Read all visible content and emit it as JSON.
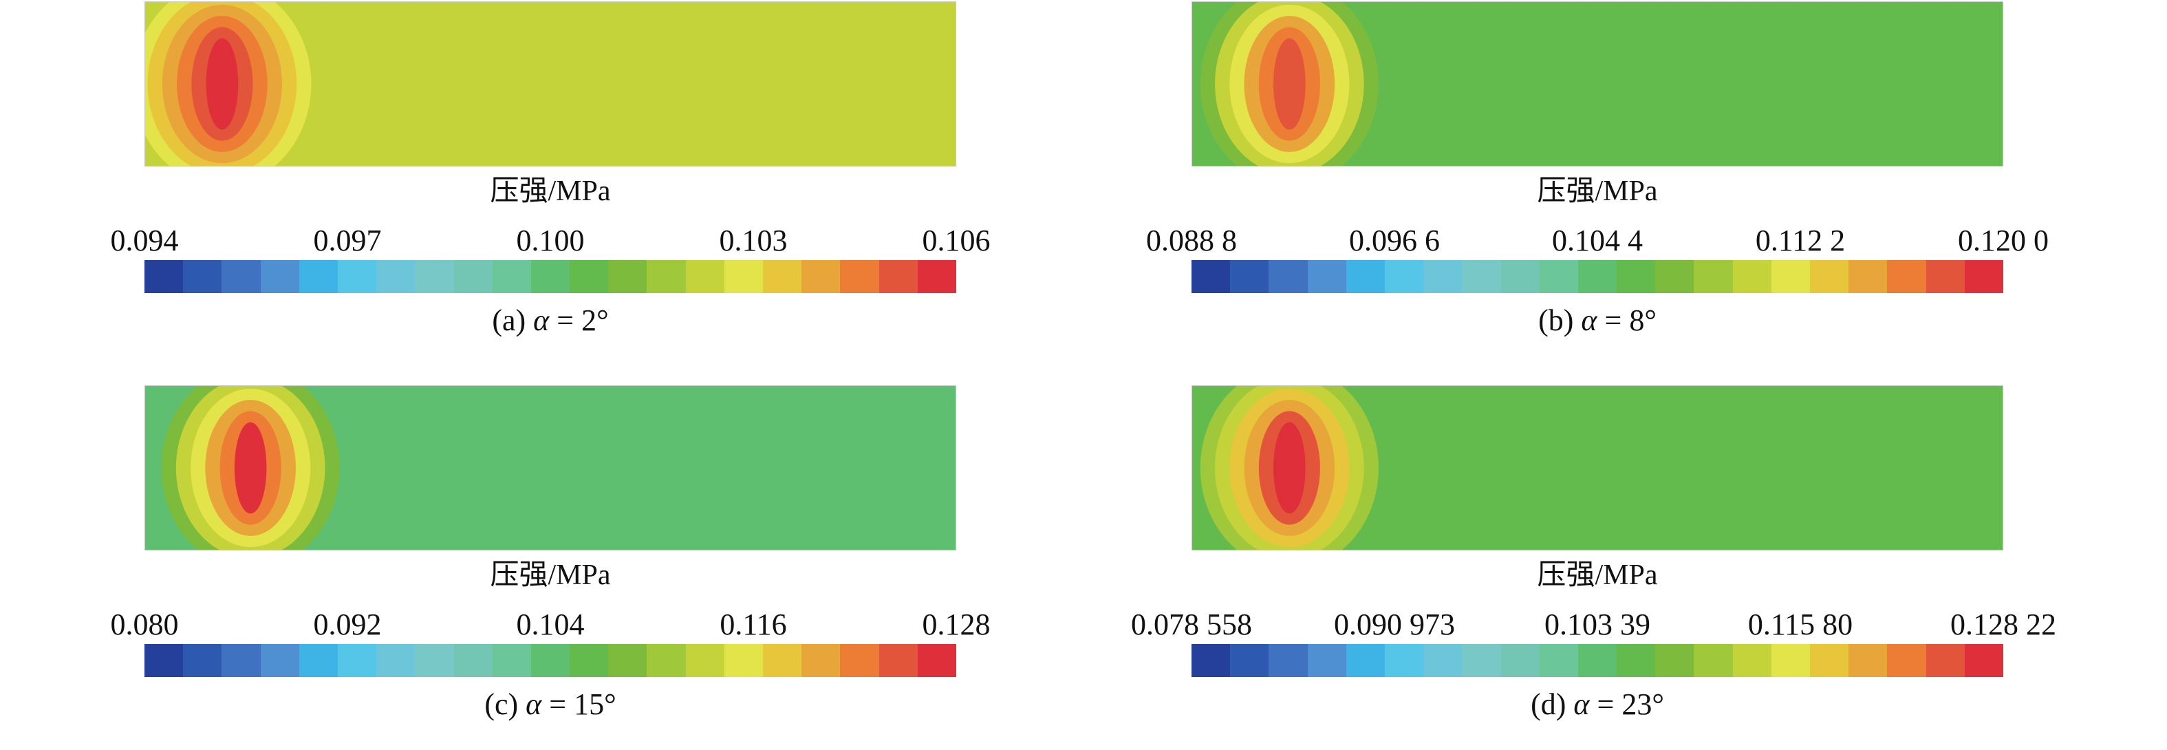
{
  "colorbar_colors": [
    "#25409a",
    "#2e59b0",
    "#3f73c2",
    "#4f90d2",
    "#3eb3e6",
    "#55c6e8",
    "#6cc5d8",
    "#78c8c7",
    "#73c6b4",
    "#6bc69a",
    "#5fbf70",
    "#62bb4c",
    "#7dbb3c",
    "#a0c83b",
    "#c3d339",
    "#e3e34a",
    "#e8c63b",
    "#e8a53a",
    "#ed7c34",
    "#e2553b",
    "#df2f3a"
  ],
  "chart_data": [
    {
      "type": "heatmap",
      "colorbar_title": "压强/MPa",
      "ticks": [
        "0.094",
        "0.097",
        "0.100",
        "0.103",
        "0.106"
      ],
      "vmin": 0.094,
      "vmax": 0.106,
      "caption_prefix": "(a) ",
      "caption_alpha": "α",
      "caption_suffix": " = 2°",
      "alpha_deg": 2,
      "background_value": 0.1022,
      "hotspot_peak_value": 0.1056,
      "hotspot_center_fraction": 0.095
    },
    {
      "type": "heatmap",
      "colorbar_title": "压强/MPa",
      "ticks": [
        "0.088 8",
        "0.096 6",
        "0.104 4",
        "0.112 2",
        "0.120 0"
      ],
      "vmin": 0.0888,
      "vmax": 0.12,
      "caption_prefix": "(b) ",
      "caption_alpha": "α",
      "caption_suffix": " = 8°",
      "alpha_deg": 8,
      "background_value": 0.1055,
      "hotspot_peak_value": 0.1185,
      "hotspot_center_fraction": 0.12
    },
    {
      "type": "heatmap",
      "colorbar_title": "压强/MPa",
      "ticks": [
        "0.080",
        "0.092",
        "0.104",
        "0.116",
        "0.128"
      ],
      "vmin": 0.08,
      "vmax": 0.128,
      "caption_prefix": "(c) ",
      "caption_alpha": "α",
      "caption_suffix": " = 15°",
      "alpha_deg": 15,
      "background_value": 0.1045,
      "hotspot_peak_value": 0.1262,
      "hotspot_center_fraction": 0.13
    },
    {
      "type": "heatmap",
      "colorbar_title": "压强/MPa",
      "ticks": [
        "0.078 558",
        "0.090 973",
        "0.103 39",
        "0.115 80",
        "0.128 22"
      ],
      "vmin": 0.078558,
      "vmax": 0.12822,
      "caption_prefix": "(d) ",
      "caption_alpha": "α",
      "caption_suffix": " = 23°",
      "alpha_deg": 23,
      "background_value": 0.1048,
      "hotspot_peak_value": 0.1278,
      "hotspot_center_fraction": 0.12
    }
  ]
}
